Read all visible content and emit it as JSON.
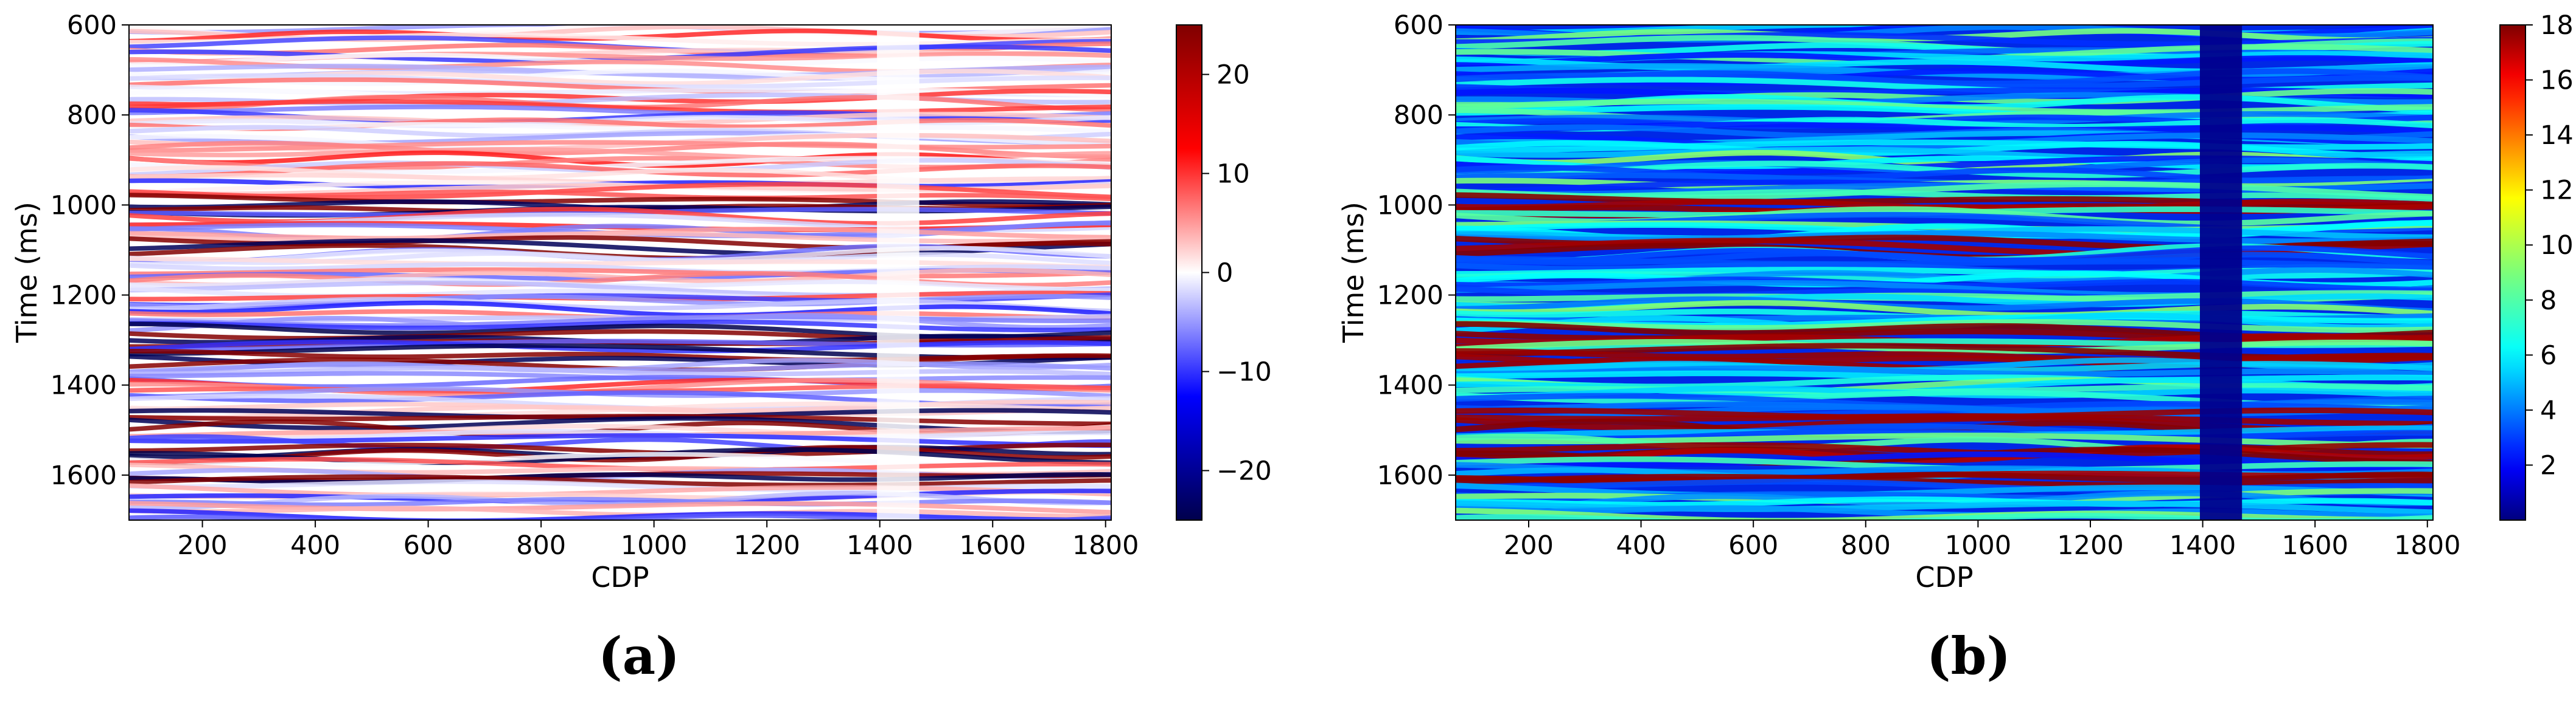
{
  "chart_data": [
    {
      "type": "heatmap",
      "panel_label": "(a)",
      "xlabel": "CDP",
      "ylabel": "Time (ms)",
      "xlim": [
        70,
        1810
      ],
      "ylim": [
        1700,
        600
      ],
      "x_ticks": [
        200,
        400,
        600,
        800,
        1000,
        1200,
        1400,
        1600,
        1800
      ],
      "y_ticks": [
        600,
        800,
        1000,
        1200,
        1400,
        1600
      ],
      "colormap": "seismic",
      "colorbar": {
        "min": -25,
        "max": 25,
        "ticks": [
          -20,
          -10,
          0,
          10,
          20
        ],
        "tick_labels": [
          "−20",
          "−10",
          "0",
          "10",
          "20"
        ]
      },
      "gap_cdp_range": [
        1395,
        1470
      ],
      "prominent_reflectors_ms": [
        1000,
        1090,
        1290,
        1340,
        1480,
        1550,
        1610
      ]
    },
    {
      "type": "heatmap",
      "panel_label": "(b)",
      "xlabel": "CDP",
      "ylabel": "Time (ms)",
      "xlim": [
        70,
        1810
      ],
      "ylim": [
        1700,
        600
      ],
      "x_ticks": [
        200,
        400,
        600,
        800,
        1000,
        1200,
        1400,
        1600,
        1800
      ],
      "y_ticks": [
        600,
        800,
        1000,
        1200,
        1400,
        1600
      ],
      "colormap": "jet",
      "colorbar": {
        "min": 0,
        "max": 18,
        "ticks": [
          2,
          4,
          6,
          8,
          10,
          12,
          14,
          16,
          18
        ],
        "tick_labels": [
          "2",
          "4",
          "6",
          "8",
          "10",
          "12",
          "14",
          "16",
          "18"
        ]
      },
      "gap_cdp_range": [
        1395,
        1470
      ],
      "prominent_reflectors_ms": [
        1000,
        1090,
        1290,
        1340,
        1480,
        1550,
        1610
      ]
    }
  ],
  "colors": {
    "seismic_neg": "#00004c",
    "seismic_pos": "#800000",
    "jet_low": "#00007f",
    "jet_high": "#7f0000"
  }
}
